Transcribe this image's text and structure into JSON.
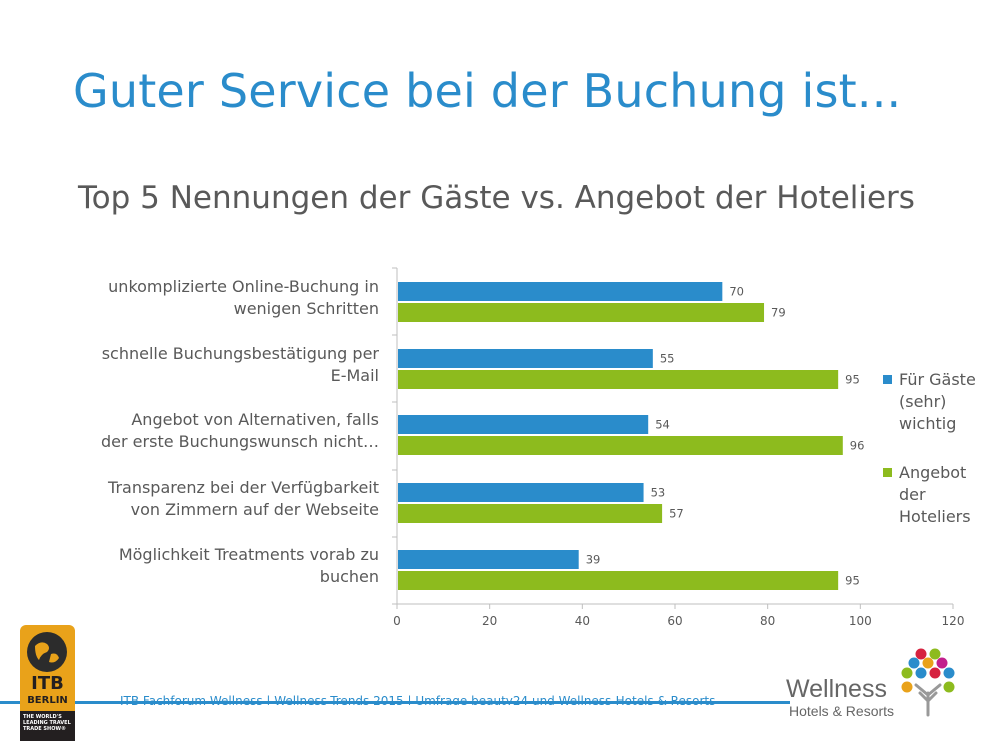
{
  "slide": {
    "title": "Guter Service bei der Buchung ist...",
    "subtitle": "Top 5 Nennungen der Gäste vs. Angebot der Hoteliers",
    "footer": "ITB Fachforum Wellness  |  Wellness-Trends 2015  |  Umfrage beauty24 und Wellness-Hotels & Resorts",
    "colors": {
      "accent": "#2a8ccb",
      "series_guests": "#2a8ccb",
      "series_hoteliers": "#8dbb1e",
      "text": "#595959"
    }
  },
  "logos": {
    "itb": {
      "word": "ITB",
      "city": "BERLIN",
      "tagline": "THE WORLD'S LEADING TRAVEL TRADE SHOW®"
    },
    "wellness": {
      "word": "Wellness",
      "sub": "Hotels & Resorts",
      "icon": "tree-dots-icon"
    }
  },
  "chart_data": {
    "type": "bar",
    "orientation": "horizontal",
    "categories": [
      [
        "unkomplizierte Online-Buchung in",
        "wenigen Schritten"
      ],
      [
        "schnelle Buchungsbestätigung per",
        "E-Mail"
      ],
      [
        "Angebot von Alternativen, falls",
        "der erste Buchungswunsch nicht…"
      ],
      [
        "Transparenz bei der Verfügbarkeit",
        "von Zimmern auf der Webseite"
      ],
      [
        "Möglichkeit Treatments vorab zu",
        "buchen"
      ]
    ],
    "series": [
      {
        "name": "Für Gäste (sehr) wichtig",
        "legend_lines": [
          "Für Gäste",
          "(sehr)",
          "wichtig"
        ],
        "color": "#2a8ccb",
        "values": [
          70,
          55,
          54,
          53,
          39
        ]
      },
      {
        "name": "Angebot der Hoteliers",
        "legend_lines": [
          "Angebot",
          "der",
          "Hoteliers"
        ],
        "color": "#8dbb1e",
        "values": [
          79,
          95,
          96,
          57,
          95
        ]
      }
    ],
    "xlim": [
      0,
      120
    ],
    "xticks": [
      0,
      20,
      40,
      60,
      80,
      100,
      120
    ],
    "grid": false,
    "legend_position": "right",
    "data_labels": true
  }
}
